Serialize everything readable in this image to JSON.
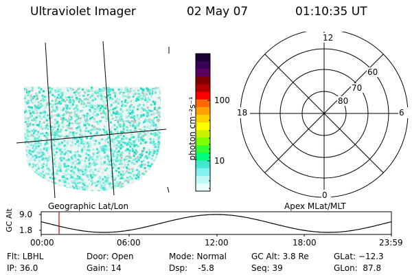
{
  "header": {
    "instrument": "Ultraviolet Imager",
    "date": "02 May 07",
    "time": "01:10:35 UT"
  },
  "colorbar": {
    "unit_label": "photon cm⁻²s⁻¹",
    "tick_100": "100",
    "tick_10": "10",
    "colors_top_to_bottom": [
      "#1a0033",
      "#3a0055",
      "#5a0060",
      "#800000",
      "#b00000",
      "#ff0000",
      "#ff6a00",
      "#ffa000",
      "#ffd000",
      "#ffff00",
      "#c8f000",
      "#80ff00",
      "#30ff30",
      "#00ff80",
      "#40e8d0",
      "#80f0f0",
      "#c0f8f8",
      "#e8ffff"
    ]
  },
  "panels": {
    "left_caption": "Geographic Lat/Lon",
    "right_caption": "Apex MLat/MLT"
  },
  "polar": {
    "mlt_labels": {
      "top": "12",
      "left": "18",
      "right": "6",
      "bottom": "0"
    },
    "lat_labels": [
      "60",
      "70",
      "80"
    ]
  },
  "altitude_plot": {
    "ylabel": "GC Alt",
    "ytick_top": "9.0",
    "ytick_bottom": "1.8",
    "xticks": [
      "00:00",
      "06:00",
      "12:00",
      "18:00",
      "23:59"
    ],
    "current_time_color": "#cc0000"
  },
  "info": {
    "flt": "Flt: LBHL",
    "ip": "IP: 36.0",
    "door": "Door: Open",
    "gain": "Gain: 14",
    "mode": "Mode: Normal",
    "dsp": "Dsp:    -5.8",
    "gcalt": "GC Alt: 3.8 Re",
    "seq": "Seq: 39",
    "glat": "GLat: −12.3",
    "glon": "GLon:  87.8"
  }
}
